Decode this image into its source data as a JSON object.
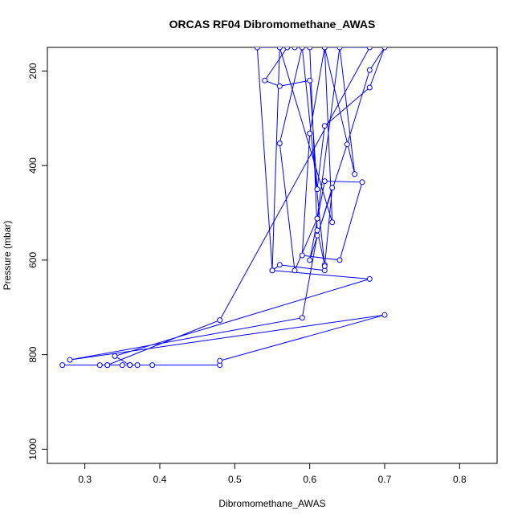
{
  "chart_data": {
    "type": "line",
    "title": "ORCAS RF04 Dibromomethane_AWAS",
    "xlabel": "Dibromomethane_AWAS",
    "ylabel": "Pressure (mbar)",
    "xlim": [
      0.25,
      0.85
    ],
    "ylim": [
      1030,
      150
    ],
    "y_reversed": true,
    "grid": false,
    "legend": "none",
    "line_color": "#0000ff",
    "marker": "open-circle",
    "x_ticks": [
      "0.3",
      "0.4",
      "0.5",
      "0.6",
      "0.7",
      "0.8"
    ],
    "y_ticks": [
      "200",
      "400",
      "600",
      "800",
      "1000"
    ],
    "series": [
      {
        "x": [
          0.27,
          0.32,
          0.33,
          0.35,
          0.36,
          0.37,
          0.39,
          0.48,
          0.48,
          0.7,
          0.28,
          0.59,
          0.61,
          0.65,
          0.68,
          0.7,
          0.68,
          0.62,
          0.61,
          0.6,
          0.56,
          0.54,
          0.57,
          0.6,
          0.61,
          0.62,
          0.62,
          0.56,
          0.55,
          0.68,
          0.34,
          0.36,
          0.33,
          0.48,
          0.68,
          0.62,
          0.6,
          0.59,
          0.64,
          0.67,
          0.62,
          0.6,
          0.63,
          0.62,
          0.59,
          0.56,
          0.58,
          0.61,
          0.64,
          0.66,
          0.62,
          0.63,
          0.56,
          0.55,
          0.53,
          0.58
        ],
        "y": [
          822,
          822,
          822,
          822,
          822,
          822,
          822,
          822,
          813,
          716,
          811,
          722,
          548,
          355,
          198,
          150,
          235,
          316,
          450,
          220,
          232,
          220,
          150,
          150,
          537,
          610,
          622,
          610,
          622,
          640,
          803,
          822,
          822,
          727,
          150,
          150,
          332,
          590,
          600,
          435,
          433,
          600,
          447,
          613,
          150,
          353,
          622,
          512,
          150,
          418,
          150,
          520,
          150,
          622,
          150,
          150
        ]
      }
    ]
  }
}
